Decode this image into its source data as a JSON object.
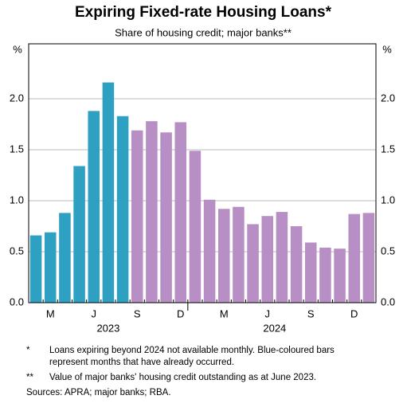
{
  "chart_data": {
    "type": "bar",
    "title": "Expiring Fixed-rate Housing Loans*",
    "subtitle": "Share of housing credit; major banks**",
    "y_label": "%",
    "y2_label": "%",
    "categories": [
      null,
      "M",
      null,
      null,
      "J",
      null,
      null,
      "S",
      null,
      null,
      "D",
      null,
      null,
      "M",
      null,
      null,
      "J",
      null,
      null,
      "S",
      null,
      null,
      "D",
      null
    ],
    "years": [
      {
        "label": "2023",
        "from": 0,
        "to": 10
      },
      {
        "label": "2024",
        "from": 11,
        "to": 22
      }
    ],
    "values": [
      0.66,
      0.69,
      0.88,
      1.34,
      1.88,
      2.16,
      1.83,
      1.69,
      1.78,
      1.67,
      1.77,
      1.49,
      1.01,
      0.92,
      0.94,
      0.77,
      0.85,
      0.89,
      0.75,
      0.59,
      0.54,
      0.53,
      0.87,
      0.88
    ],
    "colors": [
      "#2ea0c2",
      "#2ea0c2",
      "#2ea0c2",
      "#2ea0c2",
      "#2ea0c2",
      "#2ea0c2",
      "#2ea0c2",
      "#b88fc4",
      "#b88fc4",
      "#b88fc4",
      "#b88fc4",
      "#b88fc4",
      "#b88fc4",
      "#b88fc4",
      "#b88fc4",
      "#b88fc4",
      "#b88fc4",
      "#b88fc4",
      "#b88fc4",
      "#b88fc4",
      "#b88fc4",
      "#b88fc4",
      "#b88fc4",
      "#b88fc4"
    ],
    "ylim": [
      0,
      2.5
    ],
    "yticks": [
      {
        "value": 0,
        "label": "0.0"
      },
      {
        "value": 0.5,
        "label": "0.5"
      },
      {
        "value": 1,
        "label": "1.0"
      },
      {
        "value": 1.5,
        "label": "1.5"
      },
      {
        "value": 2,
        "label": "2.0"
      }
    ],
    "grid": true,
    "notes": [
      {
        "mark": "*",
        "lines": [
          "Loans expiring beyond 2024 not available monthly. Blue-coloured bars",
          "represent months that have already occurred."
        ]
      },
      {
        "mark": "**",
        "lines": [
          "Value of major banks' housing credit outstanding as at June 2023."
        ]
      }
    ],
    "source": "Sources: APRA; major banks; RBA."
  }
}
